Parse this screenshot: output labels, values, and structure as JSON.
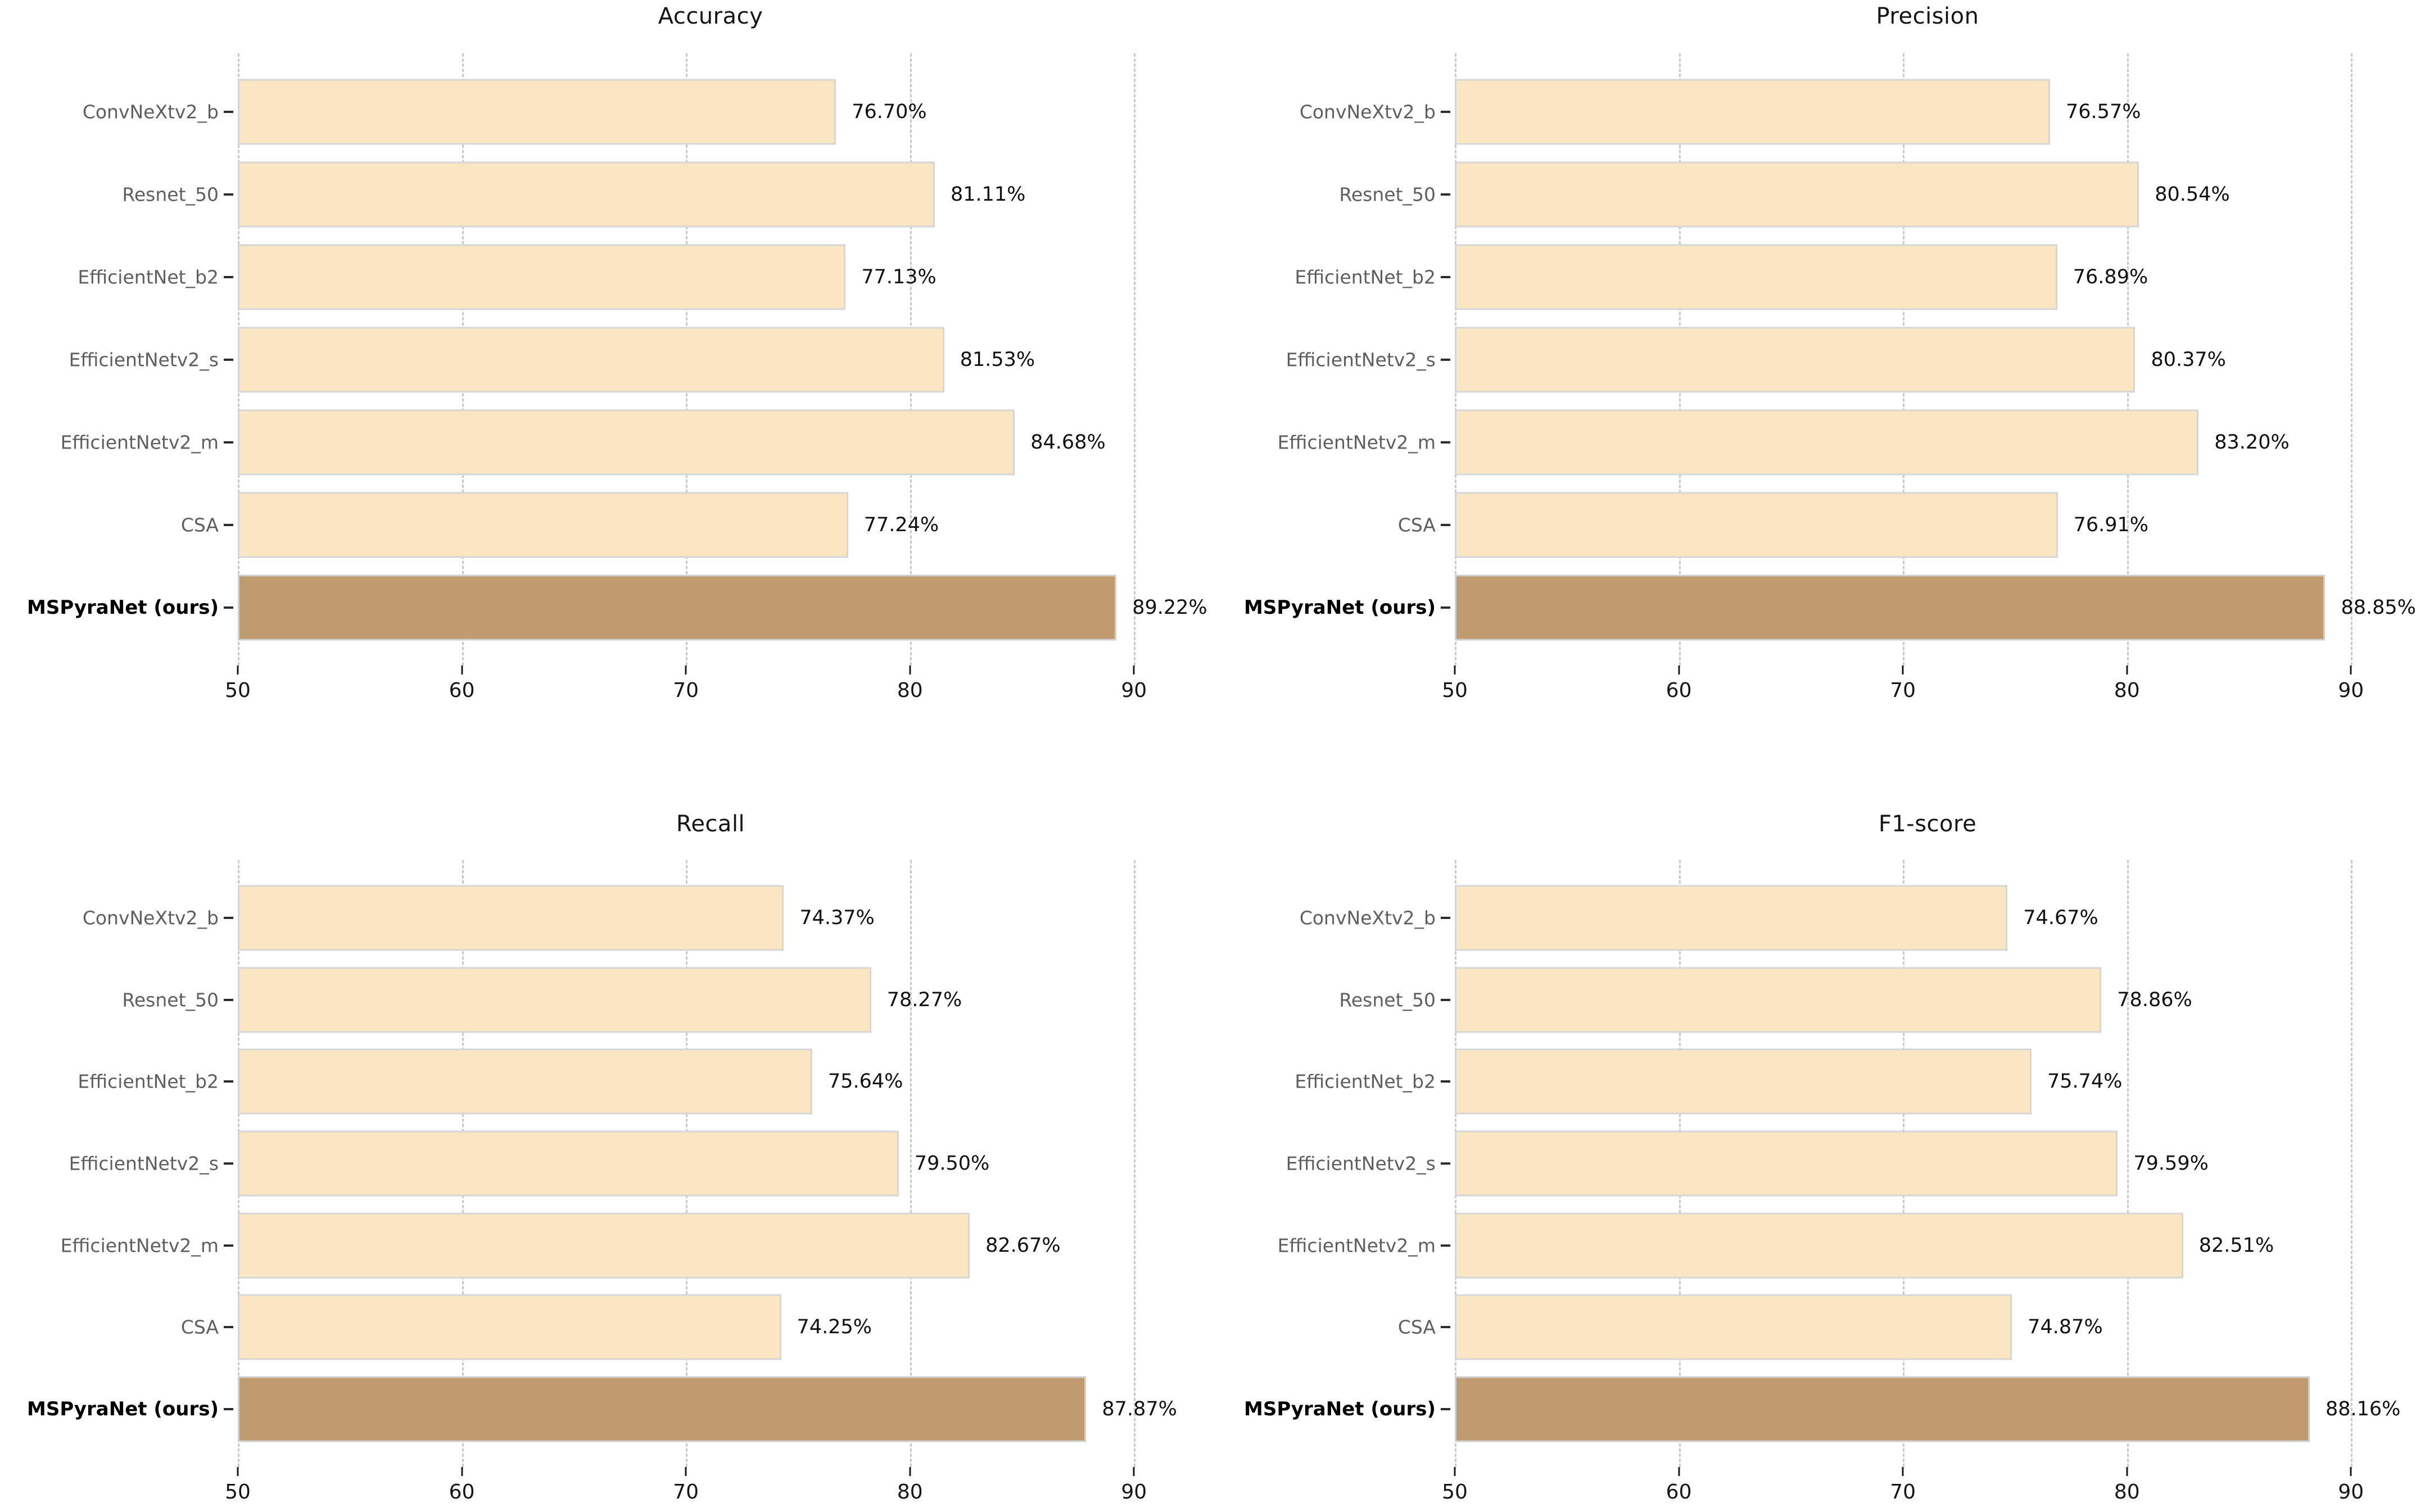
{
  "figure": {
    "background": "#ffffff"
  },
  "style": {
    "bar_fill": "#FAE6C2",
    "bar_edge": "#D6D6D6",
    "highlight_fill": "#C09B70",
    "highlight_edge": "#CFCFCF",
    "grid_color": "#C9C9C9",
    "ylabel_color": "#5E5E5E",
    "highlight_label_color": "#000000",
    "value_label_color": "#111111",
    "title_color": "#151515"
  },
  "chart_data": [
    {
      "type": "bar",
      "orientation": "horizontal",
      "title": "Accuracy",
      "categories": [
        "ConvNeXtv2_b",
        "Resnet_50",
        "EfficientNet_b2",
        "EfficientNetv2_s",
        "EfficientNetv2_m",
        "CSA",
        "MSPyraNet (ours)"
      ],
      "values": [
        76.7,
        81.11,
        77.13,
        81.53,
        84.68,
        77.24,
        89.22
      ],
      "value_labels": [
        "76.70%",
        "81.11%",
        "77.13%",
        "81.53%",
        "84.68%",
        "77.24%",
        "89.22%"
      ],
      "highlight_index": 6,
      "xlim": [
        50,
        92.2
      ],
      "xticks": [
        50,
        60,
        70,
        80,
        90
      ],
      "grid": true,
      "legend": false,
      "xlabel": "",
      "ylabel": ""
    },
    {
      "type": "bar",
      "orientation": "horizontal",
      "title": "Precision",
      "categories": [
        "ConvNeXtv2_b",
        "Resnet_50",
        "EfficientNet_b2",
        "EfficientNetv2_s",
        "EfficientNetv2_m",
        "CSA",
        "MSPyraNet (ours)"
      ],
      "values": [
        76.57,
        80.54,
        76.89,
        80.37,
        83.2,
        76.91,
        88.85
      ],
      "value_labels": [
        "76.57%",
        "80.54%",
        "76.89%",
        "80.37%",
        "83.20%",
        "76.91%",
        "88.85%"
      ],
      "highlight_index": 6,
      "xlim": [
        50,
        92.2
      ],
      "xticks": [
        50,
        60,
        70,
        80,
        90
      ],
      "grid": true,
      "legend": false,
      "xlabel": "",
      "ylabel": ""
    },
    {
      "type": "bar",
      "orientation": "horizontal",
      "title": "Recall",
      "categories": [
        "ConvNeXtv2_b",
        "Resnet_50",
        "EfficientNet_b2",
        "EfficientNetv2_s",
        "EfficientNetv2_m",
        "CSA",
        "MSPyraNet (ours)"
      ],
      "values": [
        74.37,
        78.27,
        75.64,
        79.5,
        82.67,
        74.25,
        87.87
      ],
      "value_labels": [
        "74.37%",
        "78.27%",
        "75.64%",
        "79.50%",
        "82.67%",
        "74.25%",
        "87.87%"
      ],
      "highlight_index": 6,
      "xlim": [
        50,
        92.2
      ],
      "xticks": [
        50,
        60,
        70,
        80,
        90
      ],
      "grid": true,
      "legend": false,
      "xlabel": "",
      "ylabel": ""
    },
    {
      "type": "bar",
      "orientation": "horizontal",
      "title": "F1-score",
      "categories": [
        "ConvNeXtv2_b",
        "Resnet_50",
        "EfficientNet_b2",
        "EfficientNetv2_s",
        "EfficientNetv2_m",
        "CSA",
        "MSPyraNet (ours)"
      ],
      "values": [
        74.67,
        78.86,
        75.74,
        79.59,
        82.51,
        74.87,
        88.16
      ],
      "value_labels": [
        "74.67%",
        "78.86%",
        "75.74%",
        "79.59%",
        "82.51%",
        "74.87%",
        "88.16%"
      ],
      "highlight_index": 6,
      "xlim": [
        50,
        92.2
      ],
      "xticks": [
        50,
        60,
        70,
        80,
        90
      ],
      "grid": true,
      "legend": false,
      "xlabel": "",
      "ylabel": ""
    }
  ]
}
